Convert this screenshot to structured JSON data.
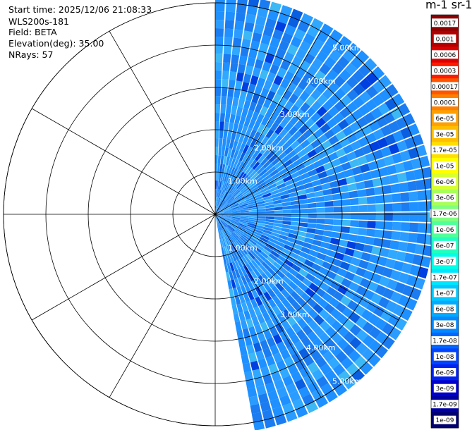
{
  "info": {
    "start_time": "Start time: 2025/12/06 21:08:33",
    "instrument": "WLS200s-181",
    "field": "Field: BETA",
    "elevation": "Elevation(deg): 35.00",
    "nrays": "NRays: 57"
  },
  "colorbar": {
    "units_label": "m-1 sr-1",
    "labels": [
      "0.0017",
      "0.001",
      "0.0006",
      "0.0003",
      "0.00017",
      "0.0001",
      "6e-05",
      "3e-05",
      "1.7e-05",
      "1e-05",
      "6e-06",
      "3e-06",
      "1.7e-06",
      "1e-06",
      "6e-07",
      "3e-07",
      "1.7e-07",
      "1e-07",
      "6e-08",
      "3e-08",
      "1.7e-08",
      "1e-08",
      "6e-09",
      "3e-09",
      "1.7e-09",
      "1e-09"
    ],
    "colors": [
      "#8b0000",
      "#b00000",
      "#dd0000",
      "#ff1a00",
      "#ff5500",
      "#ff7f00",
      "#ffa000",
      "#ffbf00",
      "#ffdf00",
      "#ffff00",
      "#d8ff30",
      "#a8ff5a",
      "#80ff80",
      "#50ff9a",
      "#20ffc0",
      "#00ffe6",
      "#00e6ff",
      "#00c8ff",
      "#00aaff",
      "#0088ff",
      "#0066ff",
      "#0044ff",
      "#0022ee",
      "#0000cc",
      "#0000a0",
      "#00006e"
    ]
  },
  "chart_data": {
    "type": "heatmap",
    "projection": "polar PPI",
    "field": "BETA",
    "elevation_deg": 35.0,
    "n_rays": 57,
    "azimuth_coverage_deg": [
      0,
      170
    ],
    "range_rings_km": [
      "1.00km",
      "2.00km",
      "3.00km",
      "4.00km",
      "5.00km"
    ],
    "max_range_km": 5.2,
    "value_range": [
      1e-09,
      0.0017
    ],
    "dominant_value": "~1e-08 to 6e-08",
    "spoke_angles_deg": [
      0,
      30,
      60,
      90,
      120,
      150,
      180,
      210,
      240,
      270,
      300,
      330
    ]
  }
}
